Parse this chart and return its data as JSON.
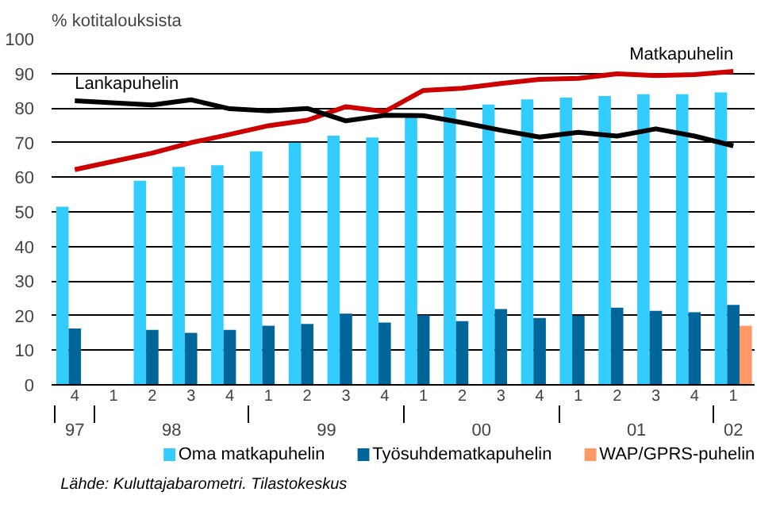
{
  "chart_data": {
    "type": "bar",
    "ylabel": "% kotitalouksista",
    "categories": [
      "4",
      "1",
      "2",
      "3",
      "4",
      "1",
      "2",
      "3",
      "4",
      "1",
      "2",
      "3",
      "4",
      "1",
      "2",
      "3",
      "4",
      "1"
    ],
    "series": [
      {
        "name": "Oma matkapuhelin",
        "color": "#33ccff",
        "values": [
          51.5,
          null,
          59,
          63,
          63.5,
          67.5,
          70,
          72,
          71.5,
          78.5,
          80,
          81,
          82.5,
          83,
          83.5,
          84,
          84,
          84.5
        ]
      },
      {
        "name": "Työsuhdematkapuhelin",
        "color": "#006699",
        "values": [
          16.3,
          null,
          15.9,
          15,
          15.9,
          17.1,
          17.6,
          20.6,
          18,
          20.1,
          18.4,
          21.9,
          19.3,
          20,
          22.3,
          21.4,
          21,
          23.1
        ]
      },
      {
        "name": "WAP/GPRS-puhelin",
        "color": "#ff9966",
        "values": [
          null,
          null,
          null,
          null,
          null,
          null,
          null,
          null,
          null,
          null,
          null,
          null,
          null,
          null,
          null,
          null,
          null,
          17.1
        ]
      },
      {
        "name": "Matkapuhelin",
        "type": "line",
        "color": "#cc0000",
        "values": [
          62.2,
          null,
          67,
          70,
          72.4,
          74.9,
          76.5,
          80.4,
          79,
          85.1,
          85.7,
          87.1,
          88.3,
          88.6,
          89.9,
          89.4,
          89.7,
          90.6
        ]
      },
      {
        "name": "Lankapuhelin",
        "type": "line",
        "color": "#000000",
        "values": [
          82.1,
          null,
          80.9,
          82.4,
          79.8,
          79.2,
          79.9,
          76.3,
          77.9,
          77.8,
          75.8,
          73.6,
          71.6,
          73,
          71.9,
          74,
          71.9,
          69.1
        ]
      }
    ],
    "ylim": [
      0,
      100
    ],
    "yticks": [
      0,
      10,
      20,
      30,
      40,
      50,
      60,
      70,
      80,
      90,
      100
    ],
    "grid": "y",
    "legend": "bottom",
    "annotations": [
      "97",
      "98",
      "99",
      "00",
      "01",
      "02",
      "Lähde: Kuluttajabarometri. Tilastokeskus"
    ]
  }
}
